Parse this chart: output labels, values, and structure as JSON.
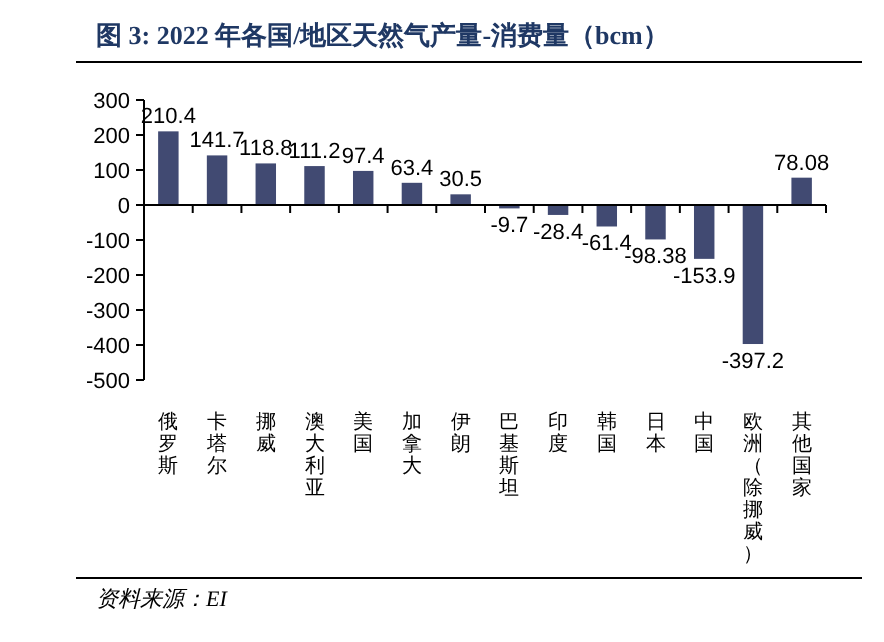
{
  "chart_data": {
    "type": "bar",
    "title": "图 3:  2022 年各国/地区天然气产量-消费量（bcm）",
    "categories": [
      "俄罗斯",
      "卡塔尔",
      "挪威",
      "澳大利亚",
      "美国",
      "加拿大",
      "伊朗",
      "巴基斯坦",
      "印度",
      "韩国",
      "日本",
      "中国",
      "欧洲（除挪威）",
      "其他国家"
    ],
    "values": [
      210.4,
      141.7,
      118.8,
      111.2,
      97.4,
      63.4,
      30.5,
      -9.7,
      -28.4,
      -61.4,
      -98.38,
      -153.9,
      -397.2,
      78.08
    ],
    "color": "#414a72",
    "data_labels": true,
    "ylim": [
      -500,
      300
    ],
    "yticks": [
      -500,
      -400,
      -300,
      -200,
      -100,
      0,
      100,
      200,
      300
    ],
    "annotations": [
      "资料来源：EI"
    ]
  }
}
